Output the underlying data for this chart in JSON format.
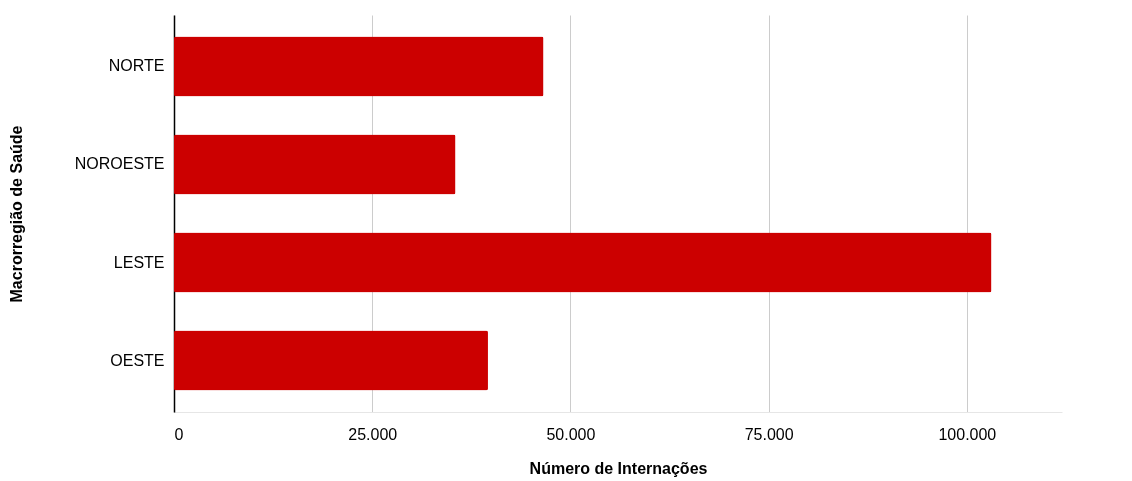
{
  "chart_data": {
    "type": "bar",
    "orientation": "horizontal",
    "xlabel": "Número de Internações",
    "ylabel": "Macrorregião de Saúde",
    "categories": [
      "NORTE",
      "NOROESTE",
      "LESTE",
      "OESTE"
    ],
    "values": [
      46600,
      35500,
      103100,
      39600
    ],
    "color": "#cc0000",
    "xlim": [
      0,
      112000
    ],
    "xticks": [
      0,
      {
        "value": 25000,
        "label": "25.000"
      },
      {
        "value": 50000,
        "label": "50.000"
      },
      {
        "value": 75000,
        "label": "75.000"
      },
      {
        "value": 100000,
        "label": "100.000"
      }
    ],
    "grid": "x"
  }
}
